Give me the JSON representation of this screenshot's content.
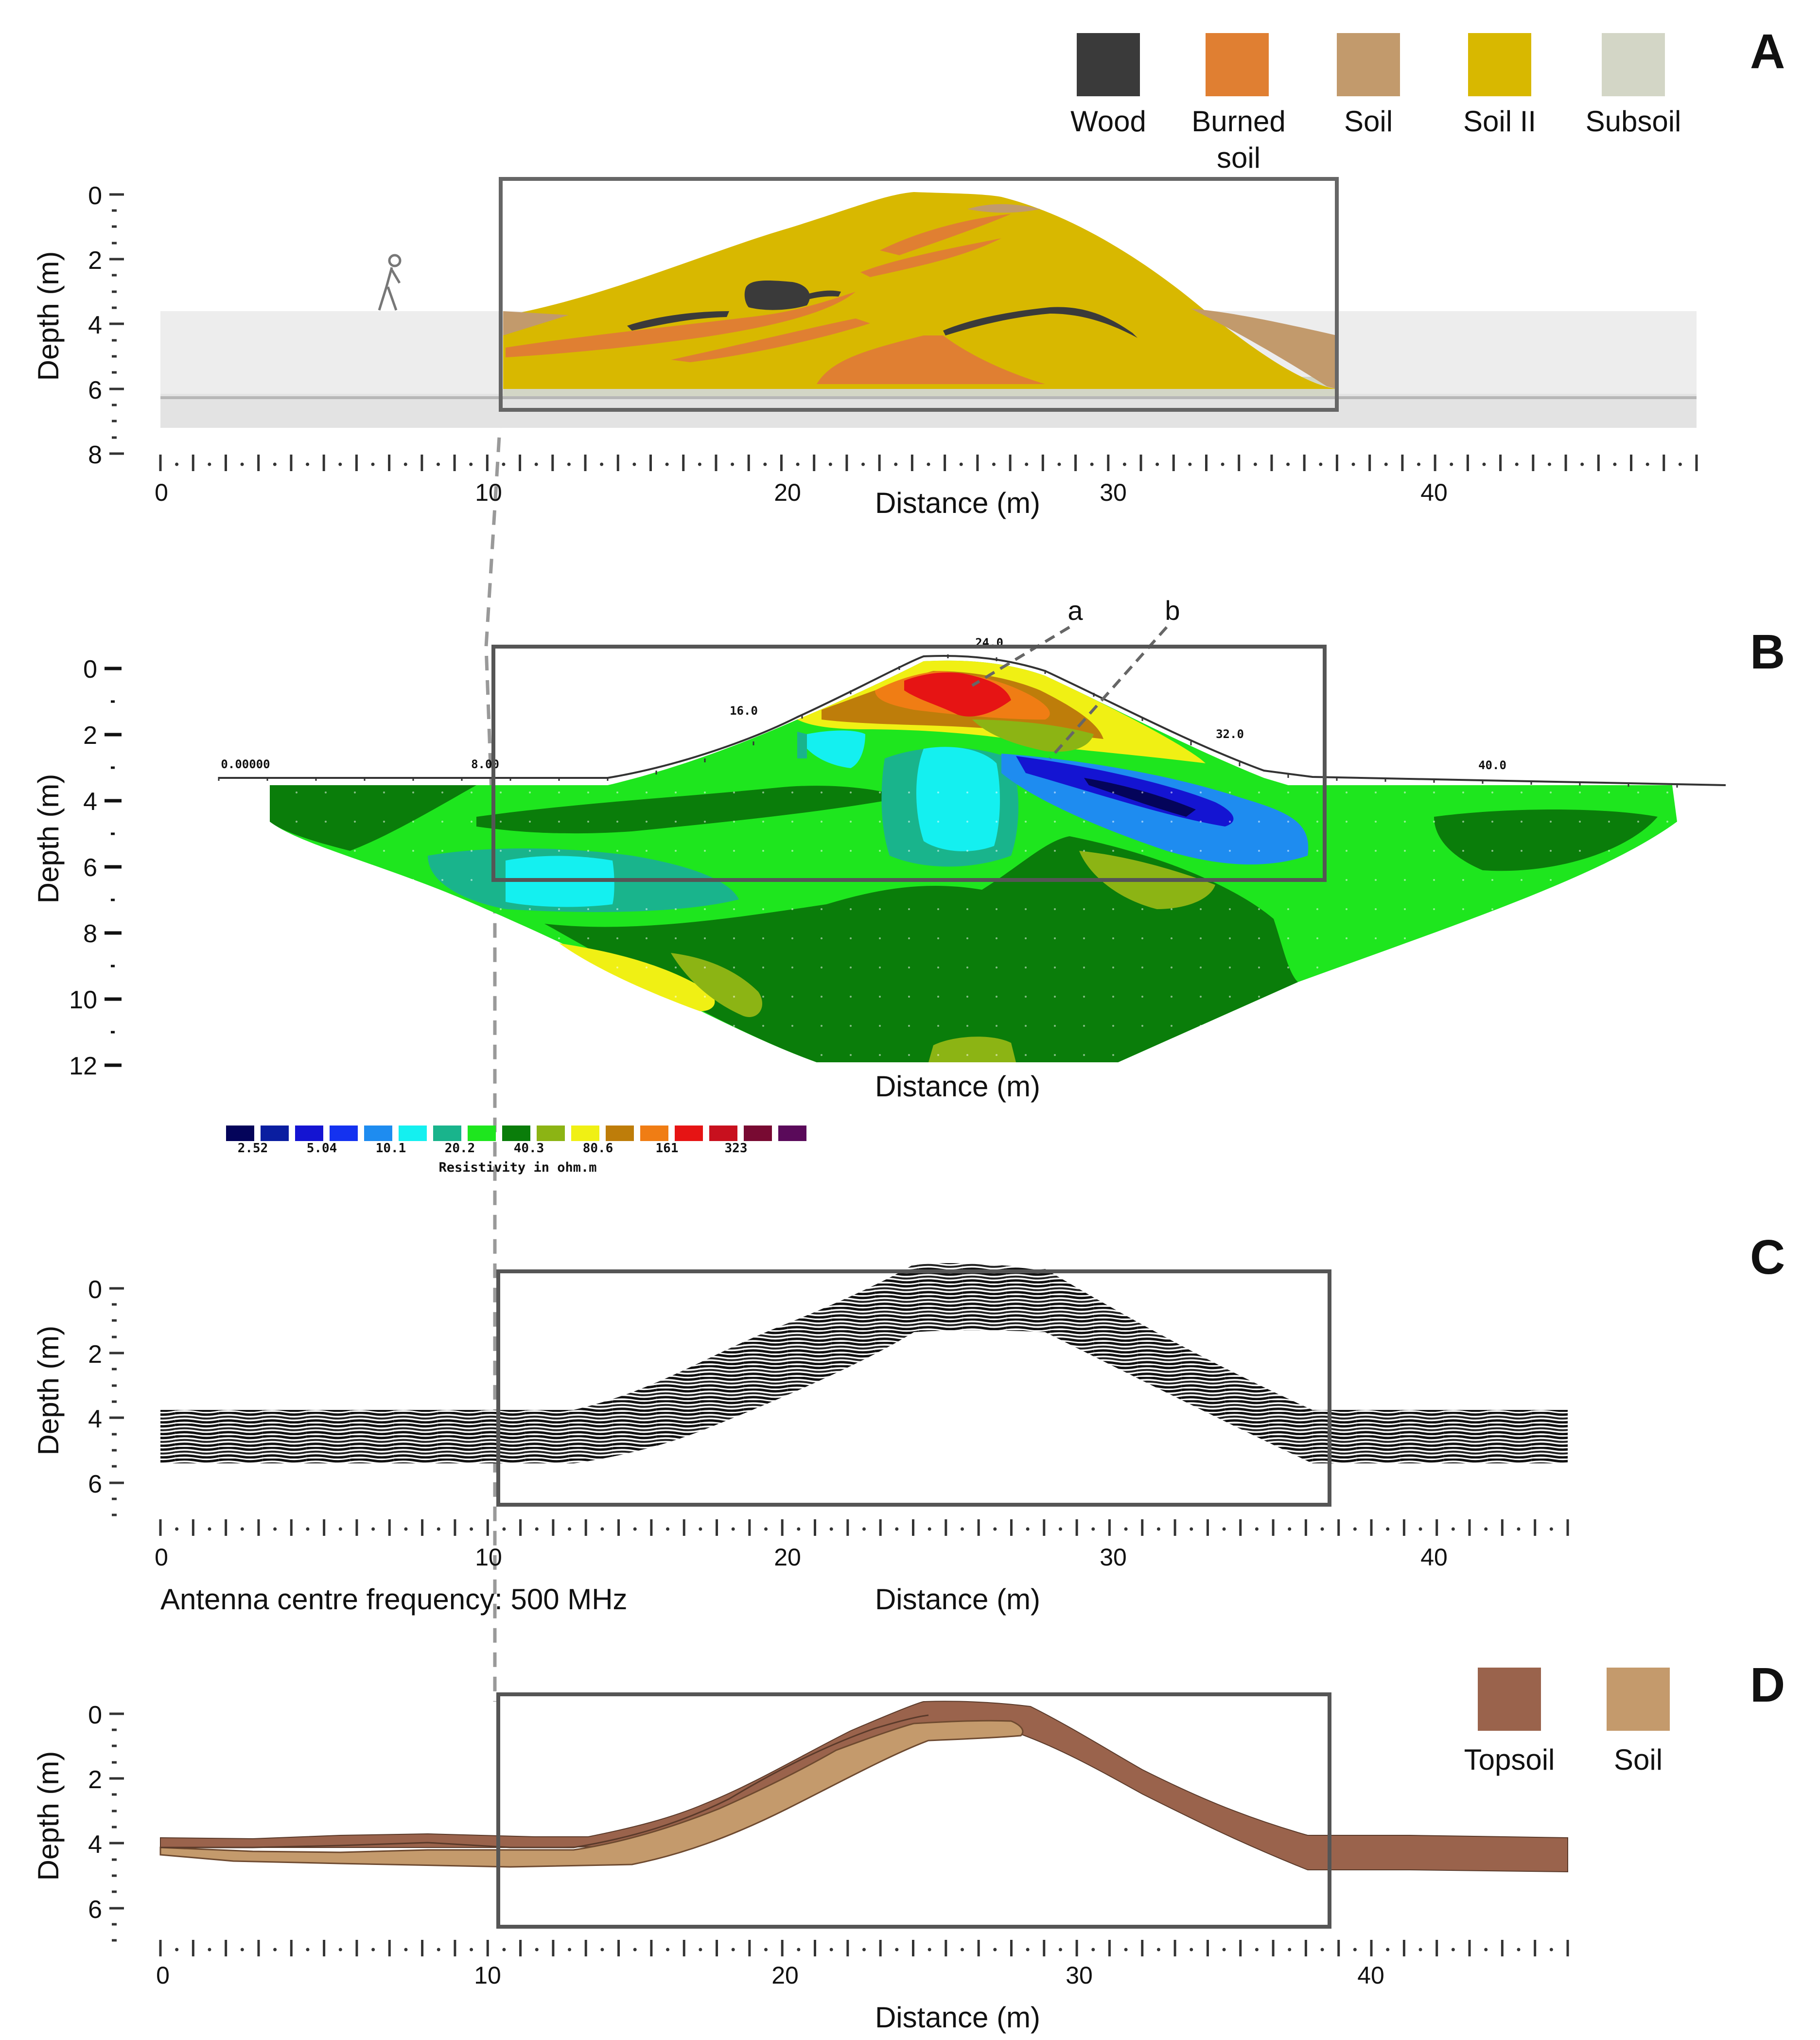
{
  "panels": {
    "A": {
      "letter": "A",
      "ylabel": "Depth (m)",
      "xlabel": "Distance (m)",
      "depth_ticks": [
        "0",
        "2",
        "4",
        "6",
        "8"
      ],
      "distance_ticks": [
        "0",
        "10",
        "20",
        "30",
        "40"
      ],
      "legend": [
        {
          "label": "Wood",
          "color": "#3a3a3a"
        },
        {
          "label": "Burned soil",
          "color": "#e07f32"
        },
        {
          "label": "Soil",
          "color": "#c29a6c"
        },
        {
          "label": "Soil II",
          "color": "#d8b800"
        },
        {
          "label": "Subsoil",
          "color": "#d3d6c6"
        }
      ]
    },
    "B": {
      "letter": "B",
      "ylabel": "Depth (m)",
      "xlabel": "Distance (m)",
      "depth_ticks": [
        "0",
        "2",
        "4",
        "6",
        "8",
        "10",
        "12"
      ],
      "profile_labels": [
        "0.00000",
        "8.00",
        "16.0",
        "24.0",
        "32.0",
        "40.0"
      ],
      "annotations": [
        "a",
        "b"
      ],
      "scale_title": "Resistivity in ohm.m",
      "scale_values": [
        "2.52",
        "5.04",
        "10.1",
        "20.2",
        "40.3",
        "80.6",
        "161",
        "323"
      ],
      "scale_colors": [
        "#04045a",
        "#0a1ea0",
        "#1414d2",
        "#1432f0",
        "#1e8cf0",
        "#14f0f0",
        "#19b48c",
        "#1ee61e",
        "#0a7d0a",
        "#8cb414",
        "#f0f014",
        "#be7d0a",
        "#f07d14",
        "#e61414",
        "#c8101e",
        "#780a32",
        "#5a0a5a"
      ]
    },
    "C": {
      "letter": "C",
      "ylabel": "Depth (m)",
      "xlabel": "Distance (m)",
      "depth_ticks": [
        "0",
        "2",
        "4",
        "6"
      ],
      "distance_ticks": [
        "0",
        "10",
        "20",
        "30",
        "40"
      ],
      "antenna_note": "Antenna centre frequency: 500 MHz"
    },
    "D": {
      "letter": "D",
      "ylabel": "Depth (m)",
      "xlabel": "Distance (m)",
      "depth_ticks": [
        "0",
        "2",
        "4",
        "6"
      ],
      "distance_ticks": [
        "0",
        "10",
        "20",
        "30",
        "40"
      ],
      "legend": [
        {
          "label": "Topsoil",
          "color": "#9a634c"
        },
        {
          "label": "Soil",
          "color": "#c49a6c"
        }
      ]
    }
  }
}
